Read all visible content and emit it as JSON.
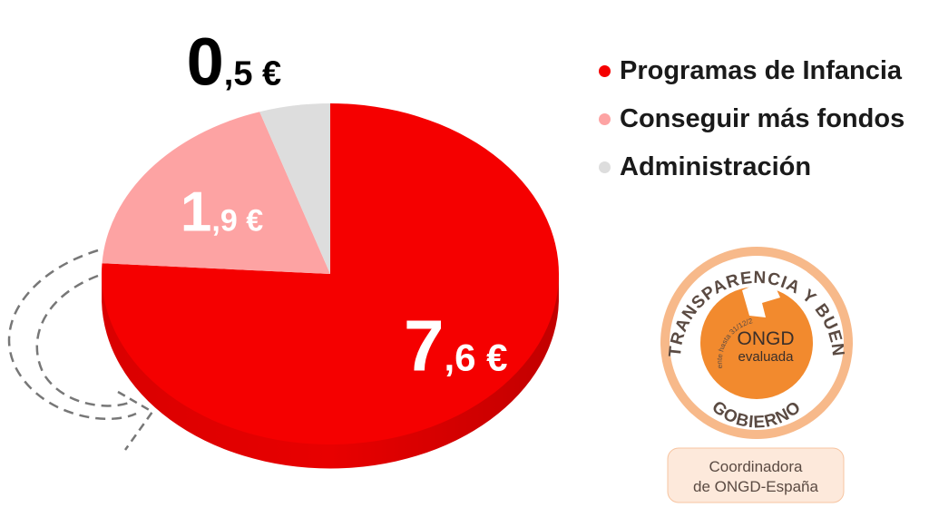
{
  "chart_data": {
    "type": "pie",
    "title": "",
    "slices": [
      {
        "label": "Programas de Infancia",
        "value": 7.6,
        "display_int": "7",
        "display_rest": ",6 €",
        "color": "#f50000"
      },
      {
        "label": "Conseguir más fondos",
        "value": 1.9,
        "display_int": "1",
        "display_rest": ",9 €",
        "color": "#fda3a3"
      },
      {
        "label": "Administración",
        "value": 0.5,
        "display_int": "0",
        "display_rest": ",5 €",
        "color": "#dddddd"
      }
    ],
    "legend_position": "top-right",
    "style": "3d-exploded"
  },
  "seal": {
    "arc_top": "TRANSPARENCIA Y BUEN",
    "arc_bottom": "GOBIERNO",
    "validity": "Vigente hasta 31/12/2022",
    "center_line1": "ONGD",
    "center_line2": "evaluada",
    "org_line1": "Coordinadora",
    "org_line2": "de ONGD-España",
    "colors": {
      "orange": "#f28a2e",
      "border": "#f7b98a",
      "text": "#5a4a42"
    }
  }
}
